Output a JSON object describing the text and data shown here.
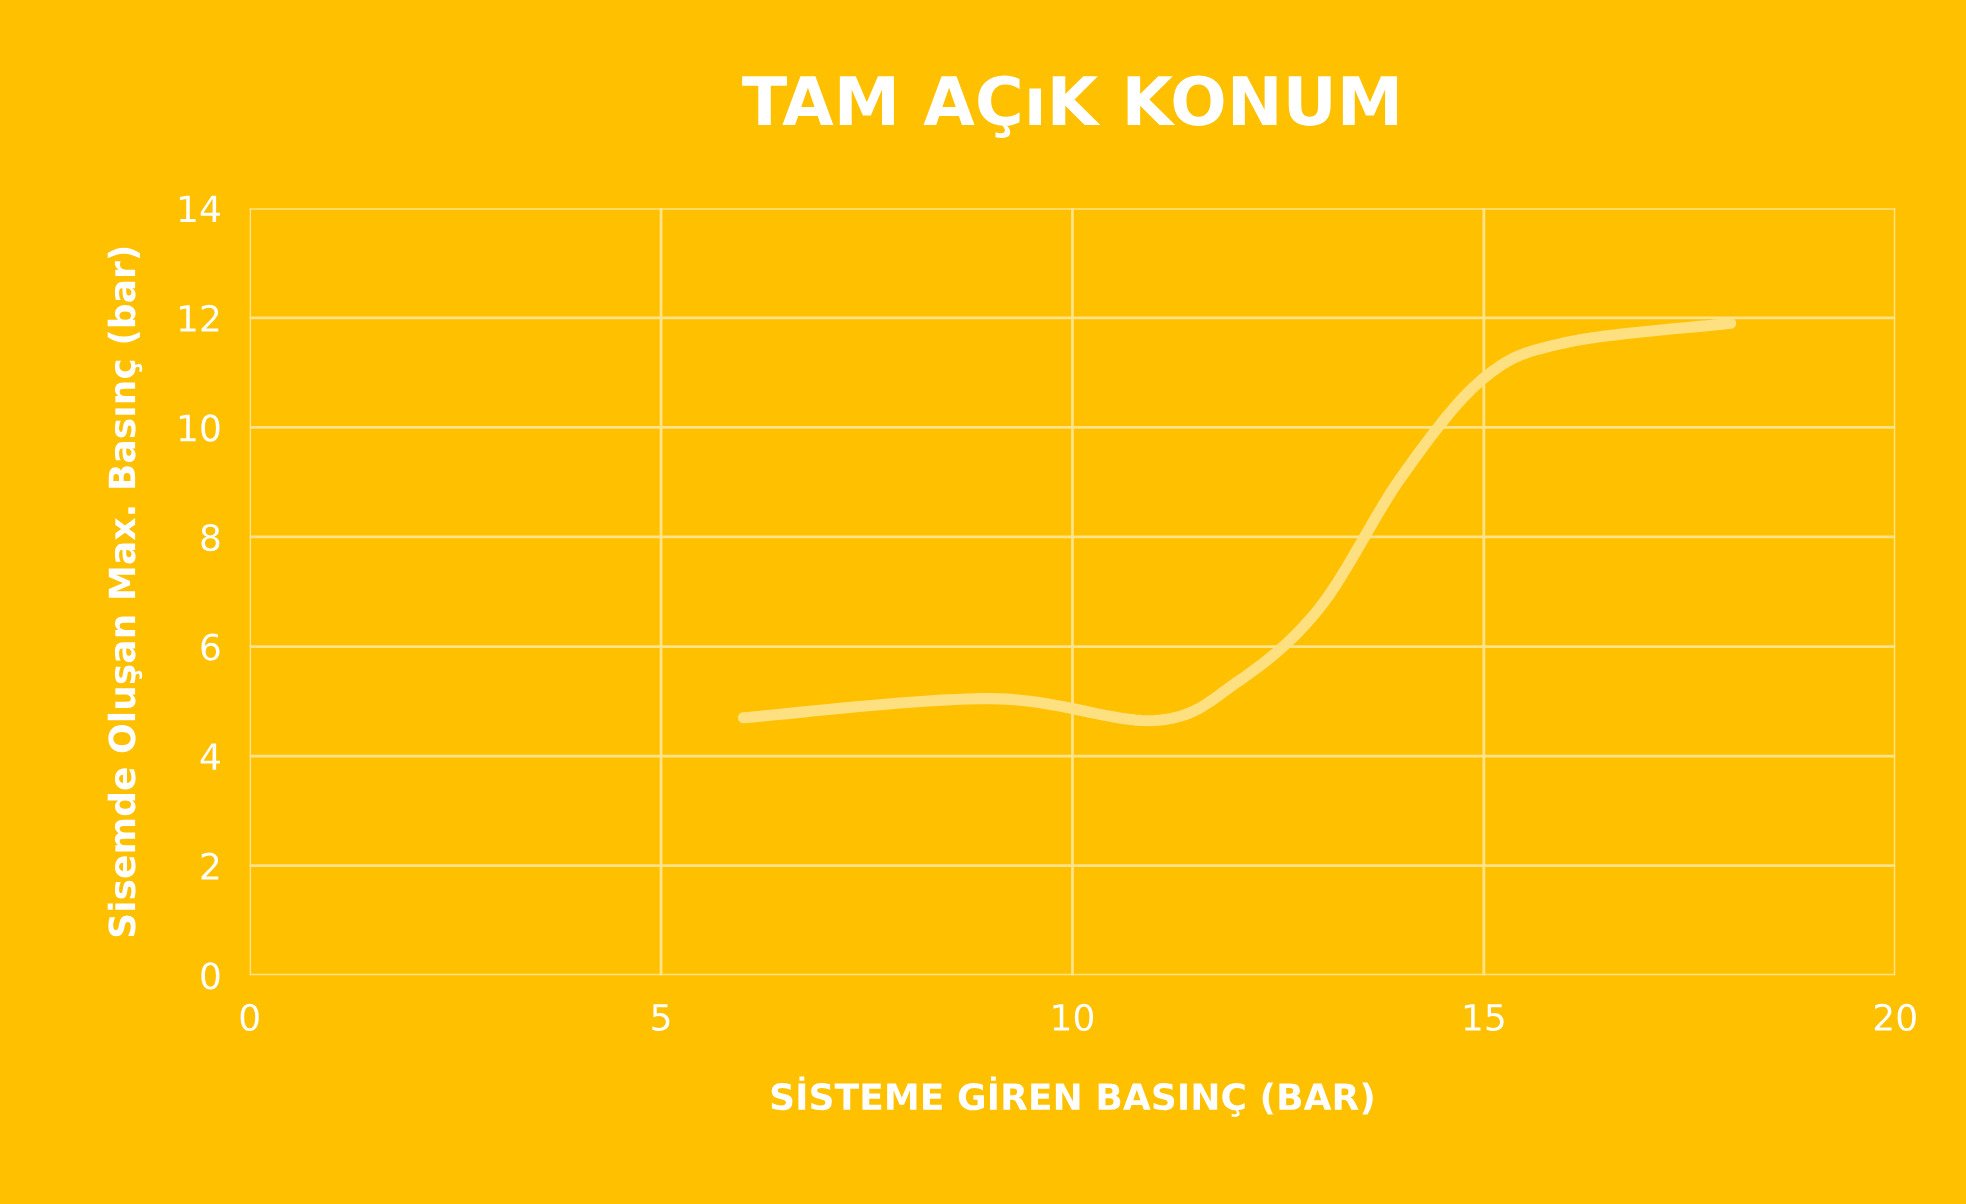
{
  "chart_data": {
    "type": "line",
    "title": "TAM AÇıK KONUM",
    "xlabel": "SİSTEME GİREN BASINÇ (BAR)",
    "ylabel": "Sisemde Oluşan Max. Basınç (bar)",
    "series": [
      {
        "color": "#ffe080",
        "x": [
          6,
          9,
          11,
          12,
          13,
          14,
          15,
          16,
          18
        ],
        "values": [
          4.7,
          5.05,
          4.65,
          5.35,
          6.7,
          9.1,
          10.9,
          11.55,
          11.9
        ]
      }
    ],
    "xlim": [
      0,
      20
    ],
    "xticks": [
      0,
      5,
      10,
      15,
      20
    ],
    "ylim": [
      0,
      14
    ],
    "yticks": [
      0,
      2,
      4,
      6,
      8,
      10,
      12,
      14
    ],
    "grid": true,
    "marker": "none",
    "line_style": "solid"
  }
}
